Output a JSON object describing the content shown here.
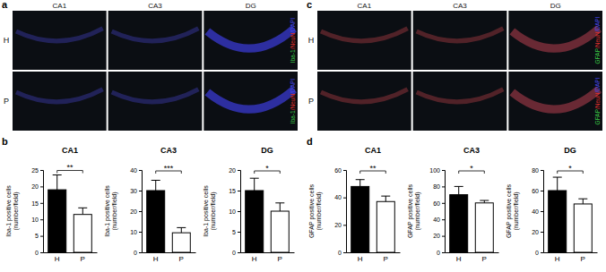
{
  "chart_data": [
    {
      "type": "bar",
      "title": "CA1",
      "y_label": [
        "Iba-1 positive cells",
        "(number/field)"
      ],
      "categories": [
        "H",
        "P"
      ],
      "values": [
        19,
        11.5
      ],
      "errors": [
        4.5,
        2
      ],
      "colors": [
        "#000000",
        "#ffffff"
      ],
      "ylim": [
        0,
        25
      ],
      "yticks": [
        0,
        5,
        10,
        15,
        20,
        25
      ],
      "annotations": [
        "**"
      ]
    },
    {
      "type": "bar",
      "title": "CA3",
      "y_label": [
        "Iba-1 positive cells",
        "(number/field)"
      ],
      "categories": [
        "H",
        "P"
      ],
      "values": [
        30,
        9.5
      ],
      "errors": [
        5,
        2.5
      ],
      "colors": [
        "#000000",
        "#ffffff"
      ],
      "ylim": [
        0,
        40
      ],
      "yticks": [
        0,
        10,
        20,
        30,
        40
      ],
      "annotations": [
        "***"
      ]
    },
    {
      "type": "bar",
      "title": "DG",
      "y_label": [
        "Iba-1 positive cells",
        "(number/field)"
      ],
      "categories": [
        "H",
        "P"
      ],
      "values": [
        15,
        10
      ],
      "errors": [
        3,
        2
      ],
      "colors": [
        "#000000",
        "#ffffff"
      ],
      "ylim": [
        0,
        20
      ],
      "yticks": [
        0,
        5,
        10,
        15,
        20
      ],
      "annotations": [
        "*"
      ]
    },
    {
      "type": "bar",
      "title": "CA1",
      "y_label": [
        "GFAP positive cells",
        "(number/field)"
      ],
      "categories": [
        "H",
        "P"
      ],
      "values": [
        48,
        37
      ],
      "errors": [
        5,
        4
      ],
      "colors": [
        "#000000",
        "#ffffff"
      ],
      "ylim": [
        0,
        60
      ],
      "yticks": [
        0,
        20,
        40,
        60
      ],
      "annotations": [
        "**"
      ]
    },
    {
      "type": "bar",
      "title": "CA3",
      "y_label": [
        "GFAP positive cells",
        "(number/field)"
      ],
      "categories": [
        "H",
        "P"
      ],
      "values": [
        70,
        60
      ],
      "errors": [
        10,
        3
      ],
      "colors": [
        "#000000",
        "#ffffff"
      ],
      "ylim": [
        0,
        100
      ],
      "yticks": [
        0,
        20,
        40,
        60,
        80,
        100
      ],
      "annotations": [
        "*"
      ]
    },
    {
      "type": "bar",
      "title": "DG",
      "y_label": [
        "GFAP positive cells",
        "(number/field)"
      ],
      "categories": [
        "H",
        "P"
      ],
      "values": [
        60,
        47
      ],
      "errors": [
        13,
        5
      ],
      "colors": [
        "#000000",
        "#ffffff"
      ],
      "ylim": [
        0,
        80
      ],
      "yticks": [
        0,
        20,
        40,
        60,
        80
      ],
      "annotations": [
        "*"
      ]
    }
  ],
  "figure": {
    "image_panels": [
      {
        "label": "a",
        "columns": [
          "CA1",
          "CA3",
          "DG"
        ],
        "rows": [
          "H",
          "P"
        ],
        "stain": [
          {
            "text": "Iba-1",
            "color": "#3fd14a"
          },
          {
            "text": "/NeuN",
            "color": "#e0312e"
          },
          {
            "text": "/DAPI",
            "color": "#4a4af0"
          }
        ]
      },
      {
        "label": "c",
        "columns": [
          "CA1",
          "CA3",
          "DG"
        ],
        "rows": [
          "H",
          "P"
        ],
        "stain": [
          {
            "text": "GFAP",
            "color": "#3fd14a"
          },
          {
            "text": "/NeuN",
            "color": "#e0312e"
          },
          {
            "text": "/DAPI",
            "color": "#4a4af0"
          }
        ]
      }
    ],
    "chart_panel_labels": [
      "b",
      "d"
    ]
  }
}
